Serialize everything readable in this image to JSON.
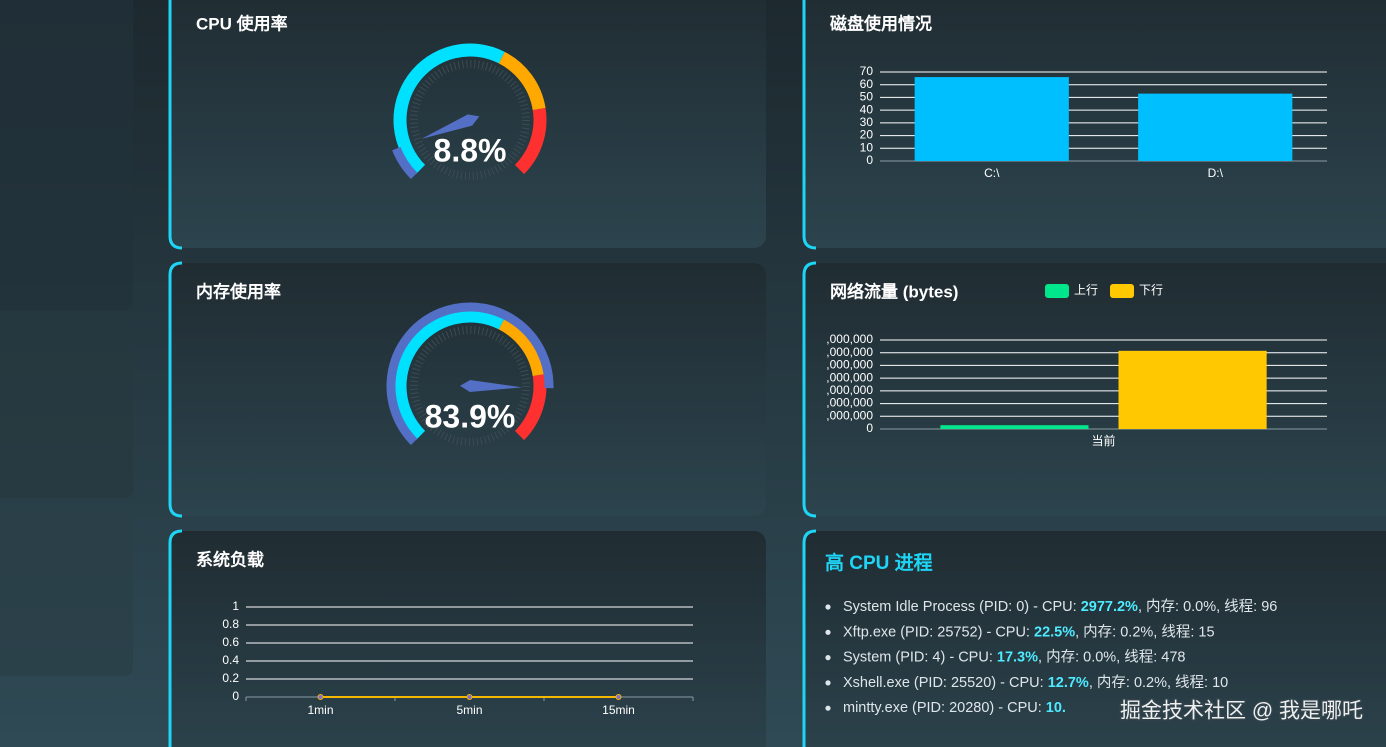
{
  "chart_data": [
    {
      "type": "gauge",
      "title": "CPU 使用率",
      "value": 8.8,
      "value_label": "8.8%",
      "ylim": [
        0,
        100
      ],
      "color": "#5470c6",
      "bands": [
        {
          "to": 60,
          "color": "#00e1ff"
        },
        {
          "to": 80,
          "color": "#ffa800"
        },
        {
          "to": 100,
          "color": "#ff3030"
        }
      ]
    },
    {
      "type": "bar",
      "title": "磁盘使用情况",
      "categories": [
        "C:\\",
        "D:\\"
      ],
      "values": [
        66,
        53
      ],
      "color": "#00bfff",
      "ylim": [
        0,
        70
      ],
      "yticks": [
        0,
        10,
        20,
        30,
        40,
        50,
        60,
        70
      ],
      "grid": true
    },
    {
      "type": "gauge",
      "title": "内存使用率",
      "value": 83.9,
      "value_label": "83.9%",
      "ylim": [
        0,
        100
      ],
      "color": "#5470c6",
      "bands": [
        {
          "to": 60,
          "color": "#00e1ff"
        },
        {
          "to": 80,
          "color": "#ffa800"
        },
        {
          "to": 100,
          "color": "#ff3030"
        }
      ]
    },
    {
      "type": "bar",
      "title": "网络流量 (bytes)",
      "categories": [
        "当前"
      ],
      "series": [
        {
          "name": "上行",
          "color": "#00e68a",
          "values": [
            300000
          ]
        },
        {
          "name": "下行",
          "color": "#ffc800",
          "values": [
            6150000
          ]
        }
      ],
      "ylim": [
        0,
        7000000
      ],
      "yticks": [
        0,
        {
          "value": 1000000,
          "label": ",000,000"
        },
        {
          "value": 2000000,
          "label": ",000,000"
        },
        {
          "value": 3000000,
          "label": ",000,000"
        },
        {
          "value": 4000000,
          "label": ",000,000"
        },
        {
          "value": 5000000,
          "label": ",000,000"
        },
        {
          "value": 6000000,
          "label": ",000,000"
        },
        {
          "value": 7000000,
          "label": ",000,000"
        }
      ],
      "grid": true,
      "legend": "top"
    },
    {
      "type": "line",
      "title": "系统负载",
      "categories": [
        "1min",
        "5min",
        "15min"
      ],
      "values": [
        0,
        0,
        0
      ],
      "color": "#f5b800",
      "ylim": [
        0,
        1
      ],
      "yticks": [
        0,
        0.2,
        0.4,
        0.6,
        0.8,
        1
      ],
      "grid": true
    }
  ],
  "process_list": {
    "title": "高 CPU 进程",
    "items": [
      {
        "prefix": "System Idle Process (PID: 0) - CPU: ",
        "cpu": "2977.2%",
        "suffix": ", 内存: 0.0%, 线程: 96"
      },
      {
        "prefix": "Xftp.exe (PID: 25752) - CPU: ",
        "cpu": "22.5%",
        "suffix": ", 内存: 0.2%, 线程: 15"
      },
      {
        "prefix": "System (PID: 4) - CPU: ",
        "cpu": "17.3%",
        "suffix": ", 内存: 0.0%, 线程: 478"
      },
      {
        "prefix": "Xshell.exe (PID: 25520) - CPU: ",
        "cpu": "12.7%",
        "suffix": ", 内存: 0.2%, 线程: 10"
      },
      {
        "prefix": "mintty.exe (PID: 20280) - CPU: ",
        "cpu": "10.",
        "suffix": ""
      }
    ]
  },
  "watermark": "掘金技术社区 @ 我是哪吒"
}
